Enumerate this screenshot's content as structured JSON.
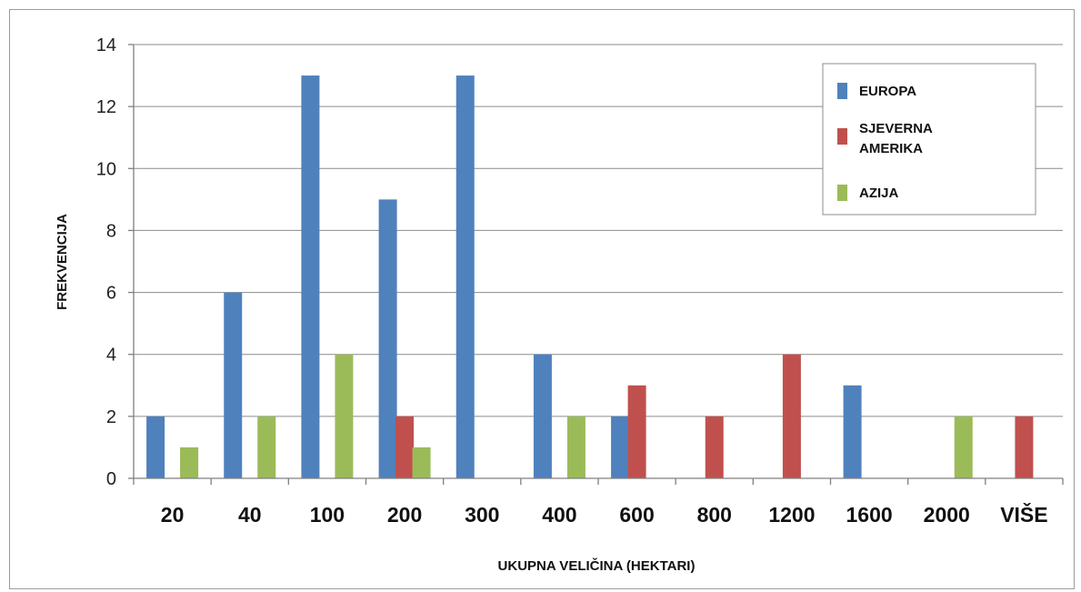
{
  "chart_data": {
    "type": "bar",
    "title": "",
    "xlabel": "UKUPNA VELIČINA (HEKTARI)",
    "ylabel": "FREKVENCIJA",
    "ylim": [
      0,
      14
    ],
    "yticks": [
      0,
      2,
      4,
      6,
      8,
      10,
      12,
      14
    ],
    "grid": true,
    "legend_position": "top-right",
    "categories": [
      "20",
      "40",
      "100",
      "200",
      "300",
      "400",
      "600",
      "800",
      "1200",
      "1600",
      "2000",
      "VIŠE"
    ],
    "series": [
      {
        "name": "EUROPA",
        "color": "#4f81bd",
        "values": [
          2,
          6,
          13,
          9,
          13,
          4,
          2,
          0,
          0,
          3,
          0,
          0
        ]
      },
      {
        "name": "SJEVERNA AMERIKA",
        "color": "#c0504d",
        "values": [
          0,
          0,
          0,
          2,
          0,
          0,
          3,
          2,
          4,
          0,
          0,
          2
        ]
      },
      {
        "name": "AZIJA",
        "color": "#9bbb59",
        "values": [
          1,
          2,
          4,
          1,
          0,
          2,
          0,
          0,
          0,
          0,
          2,
          0
        ]
      }
    ]
  }
}
